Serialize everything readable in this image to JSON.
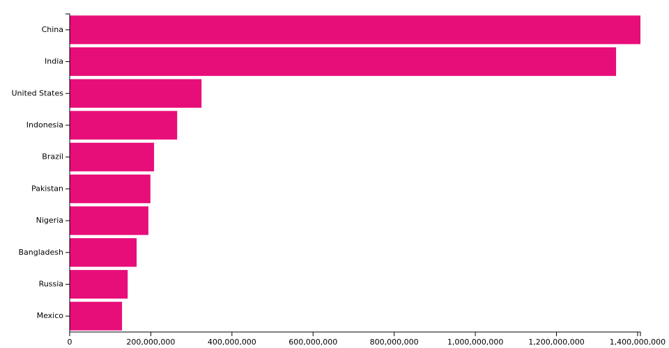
{
  "chart_data": {
    "type": "hbar",
    "categories": [
      "China",
      "India",
      "United States",
      "Indonesia",
      "Brazil",
      "Pakistan",
      "Nigeria",
      "Bangladesh",
      "Russia",
      "Mexico"
    ],
    "values": [
      1407000000,
      1347000000,
      325000000,
      265000000,
      208000000,
      199000000,
      194000000,
      165000000,
      143000000,
      129000000
    ],
    "color": "#e80e7a",
    "xlim": [
      0,
      1407000000
    ],
    "xticks": [
      0,
      {
        "value": 200000000,
        "label": "200,000,000"
      },
      {
        "value": 400000000,
        "label": "400,000,000"
      },
      {
        "value": 600000000,
        "label": "600,000,000"
      },
      {
        "value": 800000000,
        "label": "800,000,000"
      },
      {
        "value": 1000000000,
        "label": "1,000,000,000"
      },
      {
        "value": 1200000000,
        "label": "1,200,000,000"
      },
      {
        "value": 1400000000,
        "label": "1,400,000,000"
      }
    ]
  }
}
